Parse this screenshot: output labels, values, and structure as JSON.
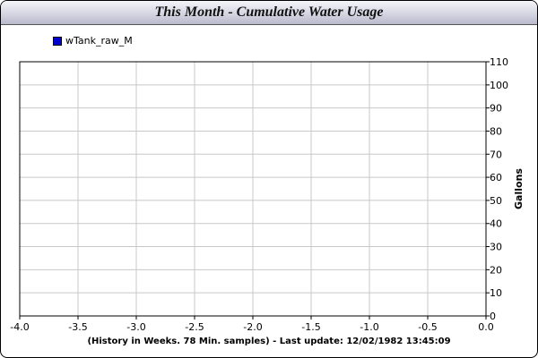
{
  "header": {
    "title": "This Month - Cumulative Water Usage"
  },
  "legend": {
    "items": [
      {
        "label": "wTank_raw_M",
        "color": "#0000cc"
      }
    ]
  },
  "footer": {
    "caption": "(History in Weeks. 78 Min. samples) - Last update: 12/02/1982 13:45:09"
  },
  "chart_data": {
    "type": "line",
    "title": "This Month - Cumulative Water Usage",
    "xlabel": "(History in Weeks. 78 Min. samples) - Last update: 12/02/1982 13:45:09",
    "ylabel": "Gallons",
    "xlim": [
      -4.0,
      0.0
    ],
    "ylim": [
      0,
      110
    ],
    "x_ticks": [
      "-4.0",
      "-3.5",
      "-3.0",
      "-2.5",
      "-2.0",
      "-1.5",
      "-1.0",
      "-0.5",
      "0.0"
    ],
    "y_ticks": [
      "0",
      "10",
      "20",
      "30",
      "40",
      "50",
      "60",
      "70",
      "80",
      "90",
      "100",
      "110"
    ],
    "y_axis_side": "right",
    "grid": true,
    "legend_position": "top-left",
    "series": [
      {
        "name": "wTank_raw_M",
        "color": "#0000cc",
        "values": []
      }
    ]
  }
}
